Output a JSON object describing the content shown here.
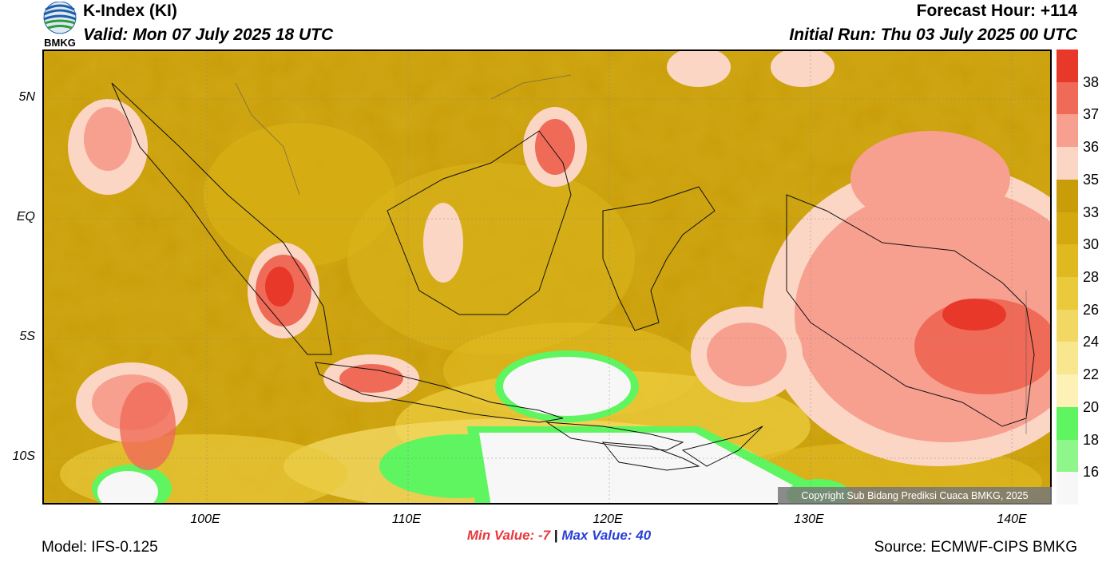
{
  "header": {
    "title": "K-Index (KI)",
    "valid": "Valid: Mon 07 July 2025 18 UTC",
    "forecast_hour": "Forecast Hour: +114",
    "initial_run": "Initial Run: Thu 03 July 2025 00 UTC",
    "logo_text": "BMKG"
  },
  "map": {
    "lat_labels": [
      "5N",
      "EQ",
      "5S",
      "10S"
    ],
    "lon_labels": [
      "100E",
      "110E",
      "120E",
      "130E",
      "140E"
    ],
    "copyright": "Copyright Sub Bidang Prediksi Cuaca BMKG, 2025"
  },
  "colorbar": {
    "labels": [
      "38",
      "37",
      "36",
      "35",
      "33",
      "30",
      "28",
      "26",
      "24",
      "22",
      "20",
      "18",
      "16"
    ],
    "colors": [
      "#e8382a",
      "#f06a58",
      "#f7a090",
      "#fcd6c4",
      "#c99d0a",
      "#d4a90f",
      "#e0b81f",
      "#eac93a",
      "#f2d862",
      "#f9e78f",
      "#fdf1b5",
      "#5ef560",
      "#8ff68c",
      "#f7f7f7"
    ]
  },
  "footer": {
    "min_label": "Min Value:",
    "min_value": "-7",
    "separator": "|",
    "max_label": "Max Value:",
    "max_value": "40",
    "model": "Model: IFS-0.125",
    "source": "Source: ECMWF-CIPS BMKG"
  }
}
